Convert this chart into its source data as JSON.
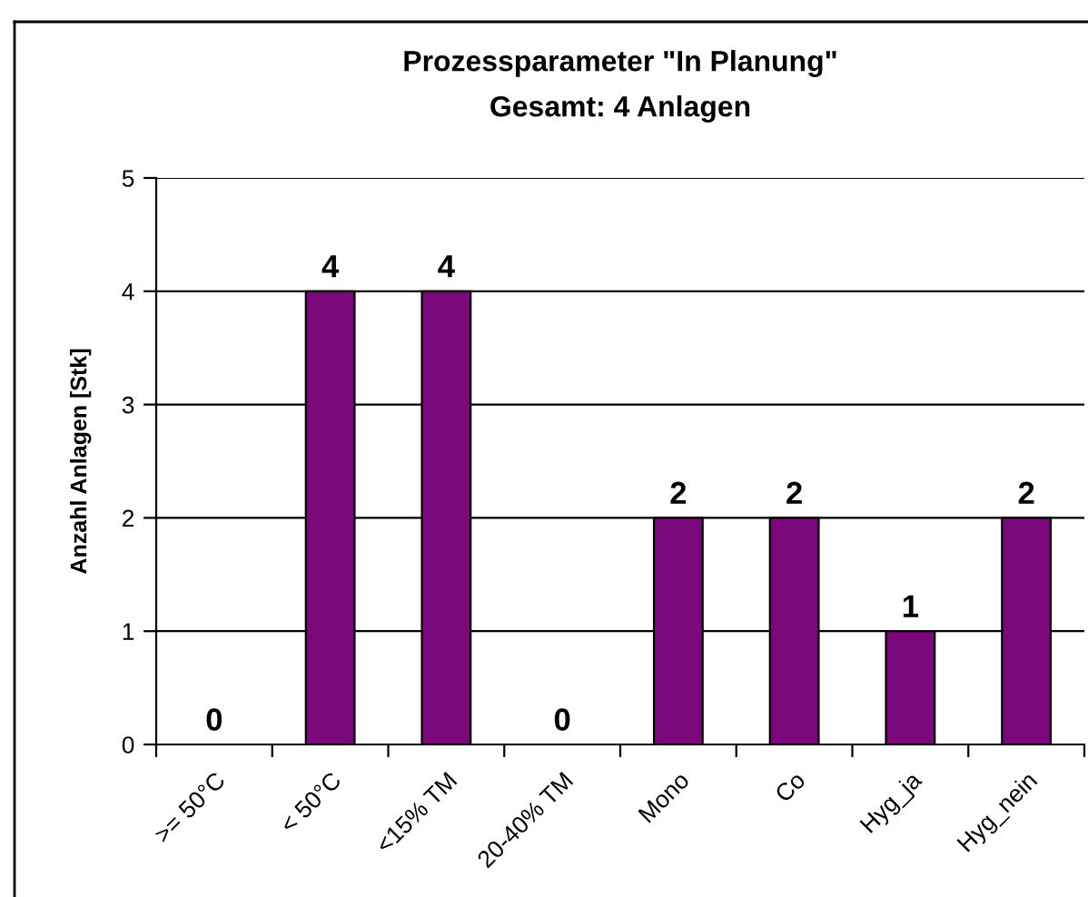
{
  "chart_data": {
    "type": "bar",
    "title": "Prozessparameter \"In Planung\"",
    "subtitle": "Gesamt: 4 Anlagen",
    "ylabel": "Anzahl Anlagen [Stk]",
    "categories": [
      ">= 50°C",
      "< 50°C",
      "<15% TM",
      "20-40% TM",
      "Mono",
      "Co",
      "Hyg_ja",
      "Hyg_nein"
    ],
    "values": [
      0,
      4,
      4,
      0,
      2,
      2,
      1,
      2
    ],
    "color": "#7a087a",
    "ylim": [
      0,
      5
    ],
    "yticks": [
      0,
      1,
      2,
      3,
      4,
      5
    ],
    "grid": "y",
    "data_labels": true
  }
}
